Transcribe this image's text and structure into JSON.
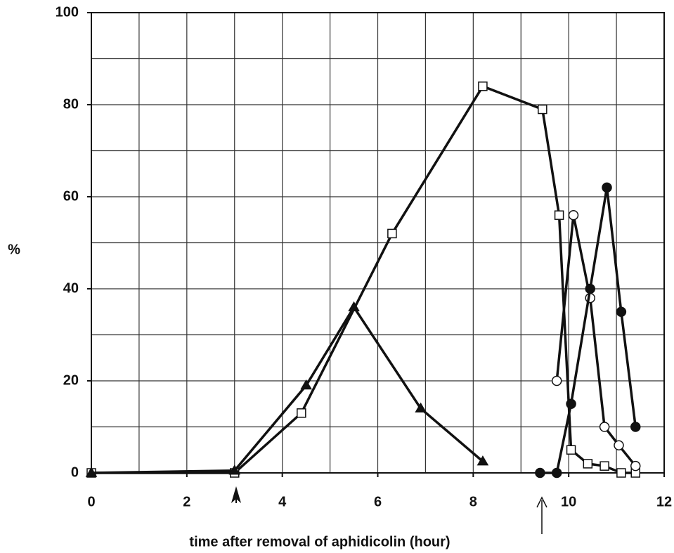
{
  "chart_data": {
    "type": "line",
    "x_label": "time after removal of aphidicolin (hour)",
    "y_label": "%",
    "xlim": [
      0,
      12
    ],
    "xticks": [
      0,
      2,
      4,
      6,
      8,
      10,
      12
    ],
    "xgrid_step": 1,
    "ylim": [
      0,
      100
    ],
    "yticks": [
      0,
      20,
      40,
      60,
      80,
      100
    ],
    "ygrid_step": 10,
    "grid": true,
    "series": [
      {
        "color": "#111",
        "marker": "square",
        "x": [
          0,
          3,
          4.4,
          6.3,
          8.2,
          9.45,
          9.8,
          10.05,
          10.4,
          10.75,
          11.1,
          11.4
        ],
        "values": [
          0,
          0,
          13,
          52,
          84,
          79,
          56,
          5,
          2,
          1.5,
          0,
          0
        ]
      },
      {
        "color": "#111",
        "marker": "triangle",
        "x": [
          0,
          3,
          4.5,
          5.5,
          6.9,
          8.2
        ],
        "values": [
          0,
          0.5,
          19,
          36,
          14,
          2.5
        ]
      },
      {
        "color": "#111",
        "marker": "circle-open",
        "x": [
          9.75,
          10.1,
          10.45,
          10.75,
          11.05,
          11.4
        ],
        "values": [
          20,
          56,
          38,
          10,
          6,
          1.5
        ]
      },
      {
        "color": "#111",
        "marker": "circle-filled",
        "x": [
          9.4,
          9.75,
          10.05,
          10.45,
          10.8,
          11.1,
          11.4
        ],
        "values": [
          0,
          0,
          15,
          40,
          62,
          35,
          10
        ]
      }
    ]
  }
}
